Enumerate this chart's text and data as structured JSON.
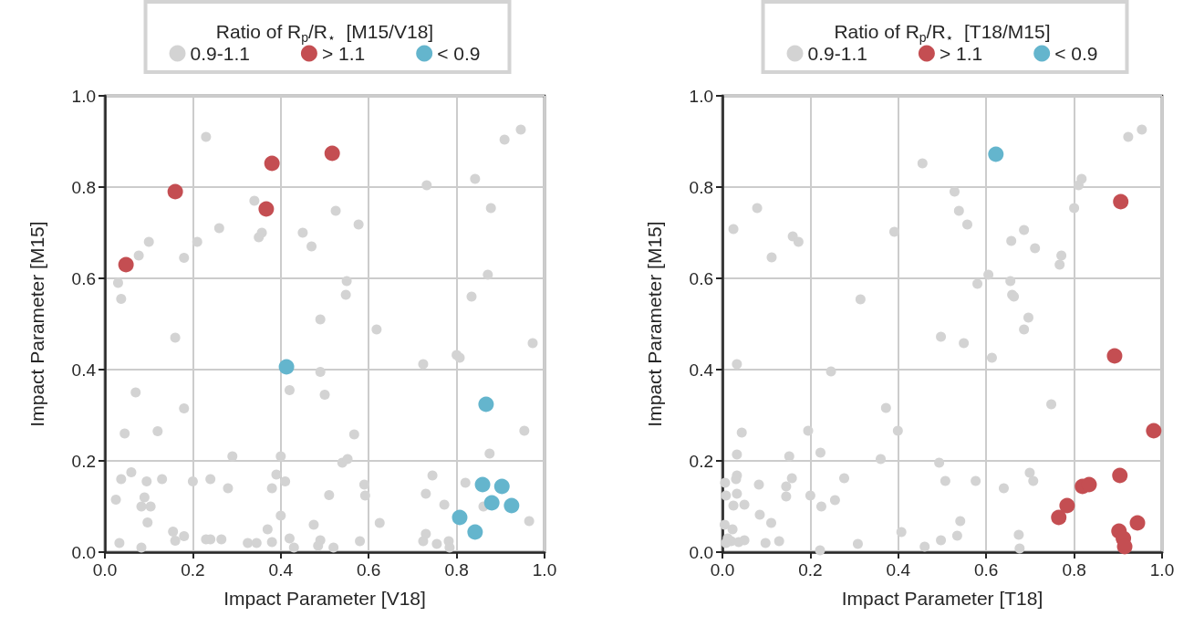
{
  "chart_data": [
    {
      "type": "scatter",
      "legend_title": "Ratio of R$_{p}$/R$_{⋆}$  [M15/V18]",
      "xlabel": "Impact Parameter [V18]",
      "ylabel": "Impact Parameter [M15]",
      "xlim": [
        0,
        1
      ],
      "ylim": [
        0,
        1
      ],
      "xticks": [
        {
          "value": 0,
          "label": "0.0"
        },
        {
          "value": 0.2,
          "label": "0.2"
        },
        {
          "value": 0.4,
          "label": "0.4"
        },
        {
          "value": 0.6,
          "label": "0.6"
        },
        {
          "value": 0.8,
          "label": "0.8"
        },
        {
          "value": 1,
          "label": "1.0"
        }
      ],
      "yticks": [
        {
          "value": 0,
          "label": "0.0"
        },
        {
          "value": 0.2,
          "label": "0.2"
        },
        {
          "value": 0.4,
          "label": "0.4"
        },
        {
          "value": 0.6,
          "label": "0.6"
        },
        {
          "value": 0.8,
          "label": "0.8"
        },
        {
          "value": 1,
          "label": "1.0"
        }
      ],
      "grid": true,
      "legend": "top",
      "marker": "circle",
      "series": [
        {
          "name": "0.9-1.1",
          "color": "#d3d3d3",
          "x": [
            0.23,
            0.34,
            0.357,
            0.35,
            0.26,
            0.1,
            0.077,
            0.21,
            0.18,
            0.03,
            0.037,
            0.16,
            0.45,
            0.47,
            0.49,
            0.49,
            0.42,
            0.5,
            0.07,
            0.18,
            0.045,
            0.12,
            0.29,
            0.4,
            0.037,
            0.06,
            0.095,
            0.13,
            0.2,
            0.24,
            0.28,
            0.39,
            0.38,
            0.41,
            0.025,
            0.09,
            0.083,
            0.104,
            0.097,
            0.4,
            0.475,
            0.155,
            0.16,
            0.18,
            0.033,
            0.083,
            0.23,
            0.24,
            0.265,
            0.325,
            0.345,
            0.38,
            0.37,
            0.42,
            0.43,
            0.49,
            0.485,
            0.51,
            0.525,
            0.577,
            0.55,
            0.548,
            0.618,
            0.567,
            0.54,
            0.552,
            0.59,
            0.592,
            0.625,
            0.58,
            0.52,
            0.732,
            0.842,
            0.909,
            0.946,
            0.878,
            0.871,
            0.834,
            0.973,
            0.724,
            0.8,
            0.807,
            0.954,
            0.875,
            0.745,
            0.73,
            0.772,
            0.82,
            0.861,
            0.965,
            0.73,
            0.724,
            0.755,
            0.782,
            0.784
          ],
          "values": [
            0.91,
            0.77,
            0.7,
            0.69,
            0.71,
            0.68,
            0.65,
            0.68,
            0.645,
            0.59,
            0.555,
            0.47,
            0.7,
            0.67,
            0.51,
            0.395,
            0.355,
            0.345,
            0.35,
            0.315,
            0.26,
            0.265,
            0.21,
            0.21,
            0.16,
            0.175,
            0.155,
            0.16,
            0.155,
            0.16,
            0.14,
            0.17,
            0.14,
            0.155,
            0.115,
            0.12,
            0.1,
            0.1,
            0.065,
            0.08,
            0.06,
            0.045,
            0.025,
            0.035,
            0.02,
            0.01,
            0.028,
            0.028,
            0.028,
            0.02,
            0.02,
            0.022,
            0.05,
            0.03,
            0.01,
            0.026,
            0.014,
            0.125,
            0.748,
            0.718,
            0.594,
            0.564,
            0.488,
            0.258,
            0.196,
            0.204,
            0.148,
            0.124,
            0.064,
            0.024,
            0.01,
            0.804,
            0.818,
            0.904,
            0.926,
            0.754,
            0.608,
            0.56,
            0.458,
            0.412,
            0.432,
            0.426,
            0.266,
            0.216,
            0.168,
            0.128,
            0.104,
            0.152,
            0.1,
            0.068,
            0.04,
            0.024,
            0.018,
            0.024,
            0.01
          ]
        },
        {
          "name": "> 1.1",
          "color": "#c44e52",
          "x": [
            0.048,
            0.16,
            0.38,
            0.367,
            0.517
          ],
          "values": [
            0.63,
            0.79,
            0.852,
            0.752,
            0.874
          ]
        },
        {
          "name": "< 0.9",
          "color": "#64b5cd",
          "x": [
            0.413,
            0.867,
            0.859,
            0.903,
            0.88,
            0.925,
            0.807,
            0.842
          ],
          "values": [
            0.406,
            0.324,
            0.148,
            0.144,
            0.108,
            0.102,
            0.076,
            0.044
          ]
        }
      ]
    },
    {
      "type": "scatter",
      "legend_title": "Ratio of R$_{p}$/R$_{⋆}$  [T18/M15]",
      "xlabel": "Impact Parameter [T18]",
      "ylabel": "Impact Parameter [M15]",
      "xlim": [
        0,
        1
      ],
      "ylim": [
        0,
        1
      ],
      "xticks": [
        {
          "value": 0,
          "label": "0.0"
        },
        {
          "value": 0.2,
          "label": "0.2"
        },
        {
          "value": 0.4,
          "label": "0.4"
        },
        {
          "value": 0.6,
          "label": "0.6"
        },
        {
          "value": 0.8,
          "label": "0.8"
        },
        {
          "value": 1,
          "label": "1.0"
        }
      ],
      "yticks": [
        {
          "value": 0,
          "label": "0.0"
        },
        {
          "value": 0.2,
          "label": "0.2"
        },
        {
          "value": 0.4,
          "label": "0.4"
        },
        {
          "value": 0.6,
          "label": "0.6"
        },
        {
          "value": 0.8,
          "label": "0.8"
        },
        {
          "value": 1,
          "label": "1.0"
        }
      ],
      "grid": true,
      "legend": "top",
      "marker": "circle",
      "series": [
        {
          "name": "0.9-1.1",
          "color": "#d3d3d3",
          "x": [
            0.455,
            0.079,
            0.025,
            0.16,
            0.173,
            0.112,
            0.391,
            0.314,
            0.497,
            0.033,
            0.247,
            0.372,
            0.195,
            0.399,
            0.044,
            0.033,
            0.152,
            0.223,
            0.36,
            0.493,
            0.033,
            0.031,
            0.006,
            0.083,
            0.158,
            0.145,
            0.145,
            0.277,
            0.008,
            0.033,
            0.2,
            0.025,
            0.05,
            0.225,
            0.256,
            0.085,
            0.111,
            0.005,
            0.023,
            0.012,
            0.02,
            0.037,
            0.05,
            0.008,
            0.098,
            0.129,
            0.222,
            0.308,
            0.407,
            0.46,
            0.497,
            0.507,
            0.528,
            0.538,
            0.557,
            0.686,
            0.657,
            0.711,
            0.771,
            0.767,
            0.817,
            0.81,
            0.8,
            0.923,
            0.954,
            0.605,
            0.58,
            0.655,
            0.659,
            0.663,
            0.696,
            0.686,
            0.549,
            0.613,
            0.748,
            0.576,
            0.64,
            0.699,
            0.707,
            0.541,
            0.534,
            0.674,
            0.676
          ],
          "values": [
            0.852,
            0.754,
            0.708,
            0.692,
            0.68,
            0.646,
            0.702,
            0.554,
            0.472,
            0.412,
            0.396,
            0.316,
            0.266,
            0.266,
            0.262,
            0.214,
            0.21,
            0.218,
            0.204,
            0.196,
            0.168,
            0.16,
            0.152,
            0.148,
            0.162,
            0.144,
            0.122,
            0.162,
            0.124,
            0.128,
            0.124,
            0.102,
            0.104,
            0.1,
            0.114,
            0.082,
            0.064,
            0.06,
            0.05,
            0.03,
            0.024,
            0.022,
            0.026,
            0.02,
            0.02,
            0.024,
            0.004,
            0.018,
            0.044,
            0.012,
            0.026,
            0.156,
            0.79,
            0.748,
            0.718,
            0.706,
            0.682,
            0.666,
            0.65,
            0.63,
            0.818,
            0.804,
            0.754,
            0.91,
            0.926,
            0.608,
            0.588,
            0.594,
            0.564,
            0.56,
            0.514,
            0.488,
            0.458,
            0.426,
            0.324,
            0.156,
            0.14,
            0.174,
            0.156,
            0.068,
            0.036,
            0.038,
            0.008
          ]
        },
        {
          "name": "> 1.1",
          "color": "#c44e52",
          "x": [
            0.906,
            0.892,
            0.981,
            0.904,
            0.819,
            0.834,
            0.784,
            0.765,
            0.944,
            0.902,
            0.912,
            0.915
          ],
          "values": [
            0.768,
            0.43,
            0.266,
            0.168,
            0.144,
            0.148,
            0.102,
            0.076,
            0.064,
            0.046,
            0.03,
            0.012
          ]
        },
        {
          "name": "< 0.9",
          "color": "#64b5cd",
          "x": [
            0.622
          ],
          "values": [
            0.872
          ]
        }
      ]
    }
  ]
}
